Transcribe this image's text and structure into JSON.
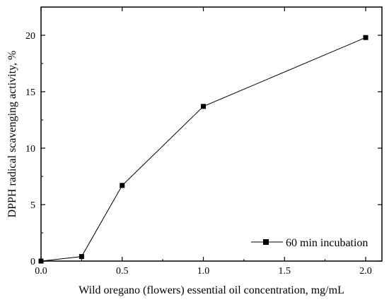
{
  "chart_data": {
    "type": "line",
    "title": "",
    "xlabel": "Wild oregano (flowers) essential oil concentration, mg/mL",
    "ylabel": "DPPH radical scavenging activity, %",
    "xlim": [
      0.0,
      2.1
    ],
    "ylim": [
      0,
      22.5
    ],
    "xticks": [
      0.0,
      0.5,
      1.0,
      1.5,
      2.0
    ],
    "xtick_labels": [
      "0.0",
      "0.5",
      "1.0",
      "1.5",
      "2.0"
    ],
    "yticks": [
      0,
      5,
      10,
      15,
      20
    ],
    "ytick_labels": [
      "0",
      "5",
      "10",
      "15",
      "20"
    ],
    "grid": false,
    "legend_position": "bottom-right",
    "series": [
      {
        "name": "60 min incubation",
        "marker": "square",
        "color": "#000000",
        "x": [
          0.0,
          0.25,
          0.5,
          1.0,
          2.0
        ],
        "y": [
          0.0,
          0.4,
          6.7,
          13.7,
          19.8
        ]
      }
    ]
  }
}
